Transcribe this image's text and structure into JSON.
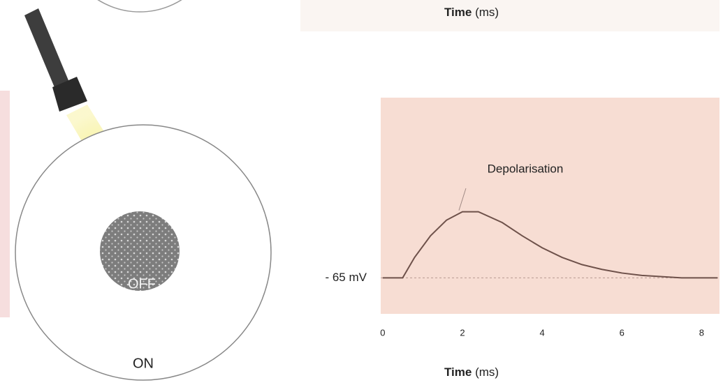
{
  "top_chart": {
    "x_label_main": "Time",
    "x_label_unit": "(ms)"
  },
  "diagram": {
    "center_label": "OFF",
    "surround_label": "ON"
  },
  "chart_data": {
    "type": "line",
    "annotation": "Depolarisation",
    "x_label_main": "Time",
    "x_label_unit": "(ms)",
    "background": "#f7ddd3",
    "xlim": [
      -0.05,
      8.45
    ],
    "ylim": [
      -68,
      -50
    ],
    "xticks": [
      0,
      2,
      4,
      6,
      8
    ],
    "yticks": [
      {
        "value": -65,
        "label": "- 65 mV"
      }
    ],
    "series": [
      {
        "color": "#6e514a",
        "x": [
          0,
          0.5,
          0.8,
          1.2,
          1.6,
          2.0,
          2.4,
          3.0,
          3.5,
          4.0,
          4.5,
          5.0,
          5.5,
          6.0,
          6.5,
          7.0,
          7.5,
          8.0,
          8.4
        ],
        "values": [
          -65,
          -65,
          -63.3,
          -61.5,
          -60.2,
          -59.5,
          -59.5,
          -60.4,
          -61.5,
          -62.5,
          -63.3,
          -63.9,
          -64.3,
          -64.6,
          -64.8,
          -64.9,
          -65,
          -65,
          -65
        ]
      }
    ]
  }
}
